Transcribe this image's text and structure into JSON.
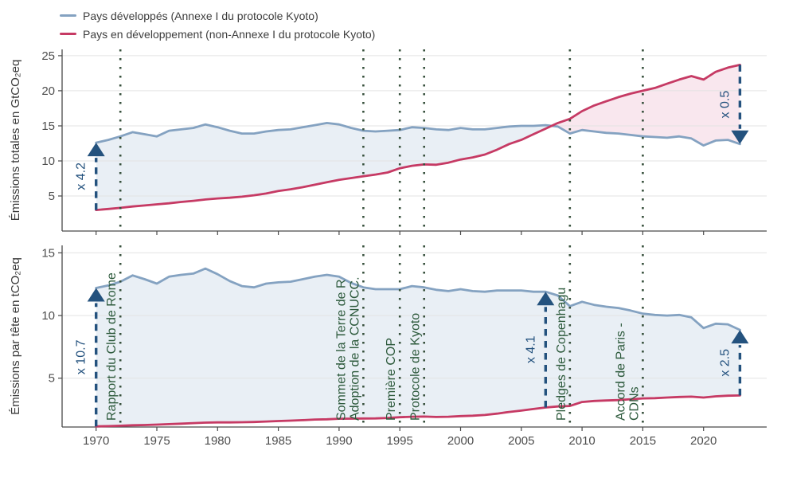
{
  "legend": {
    "items": [
      {
        "label": "Pays développés (Annexe I du protocole Kyoto)",
        "color": "#84a2c1"
      },
      {
        "label": "Pays en développement (non-Annexe I du protocole Kyoto)",
        "color": "#c63a64"
      }
    ]
  },
  "colors": {
    "developed_line": "#84a2c1",
    "developing_line": "#c63a64",
    "developed_fill": "#e9eff5",
    "developing_fill": "#f9e7ee",
    "annotation": "#24527e",
    "event_text": "#2d5a3c",
    "event_line": "#37503c",
    "grid": "#e3e3e3",
    "axis": "#4a4a4a",
    "tick_text": "#4d4d4d",
    "axis_title_text": "#3a3a3a"
  },
  "chart_data": {
    "type": "area",
    "title": "",
    "xlabel": "",
    "x": [
      1970,
      1971,
      1972,
      1973,
      1974,
      1975,
      1976,
      1977,
      1978,
      1979,
      1980,
      1981,
      1982,
      1983,
      1984,
      1985,
      1986,
      1987,
      1988,
      1989,
      1990,
      1991,
      1992,
      1993,
      1994,
      1995,
      1996,
      1997,
      1998,
      1999,
      2000,
      2001,
      2002,
      2003,
      2004,
      2005,
      2006,
      2007,
      2008,
      2009,
      2010,
      2011,
      2012,
      2013,
      2014,
      2015,
      2016,
      2017,
      2018,
      2019,
      2020,
      2021,
      2022,
      2023
    ],
    "xticks": [
      1970,
      1975,
      1980,
      1985,
      1990,
      1995,
      2000,
      2005,
      2010,
      2015,
      2020
    ],
    "xlim": [
      1967.2,
      2025.2
    ],
    "grid": "horizontal",
    "legend_position": "top-left",
    "panels": [
      {
        "ylabel": "Émissions totales en GtCO₂eq",
        "yticks": [
          5,
          10,
          15,
          20,
          25
        ],
        "ylim": [
          0,
          25.9
        ],
        "series": [
          {
            "id": "developed",
            "name": "Pays développés (Annexe I du protocole Kyoto)",
            "values": [
              12.6,
              13.0,
              13.5,
              14.1,
              13.8,
              13.5,
              14.3,
              14.5,
              14.7,
              15.2,
              14.8,
              14.3,
              13.9,
              13.9,
              14.2,
              14.4,
              14.5,
              14.8,
              15.1,
              15.4,
              15.2,
              14.7,
              14.3,
              14.2,
              14.3,
              14.4,
              14.8,
              14.7,
              14.5,
              14.4,
              14.7,
              14.5,
              14.5,
              14.7,
              14.9,
              15.0,
              15.0,
              15.1,
              14.9,
              13.9,
              14.4,
              14.2,
              14.0,
              13.9,
              13.7,
              13.5,
              13.4,
              13.3,
              13.5,
              13.2,
              12.2,
              12.9,
              13.0,
              12.4
            ]
          },
          {
            "id": "developing",
            "name": "Pays en développement (non-Annexe I du protocole Kyoto)",
            "values": [
              3.0,
              3.15,
              3.3,
              3.5,
              3.65,
              3.8,
              3.95,
              4.15,
              4.3,
              4.5,
              4.65,
              4.75,
              4.9,
              5.1,
              5.35,
              5.7,
              5.95,
              6.25,
              6.6,
              6.95,
              7.3,
              7.55,
              7.8,
              8.05,
              8.35,
              8.95,
              9.3,
              9.5,
              9.45,
              9.75,
              10.2,
              10.5,
              10.9,
              11.6,
              12.4,
              13.0,
              13.8,
              14.6,
              15.4,
              16.0,
              17.1,
              17.9,
              18.5,
              19.1,
              19.6,
              20.0,
              20.4,
              21.0,
              21.6,
              22.1,
              21.6,
              22.7,
              23.3,
              23.7
            ]
          }
        ]
      },
      {
        "ylabel": "Émissions par tête en tCO₂eq",
        "yticks": [
          5,
          10,
          15
        ],
        "ylim": [
          1.1,
          15.6
        ],
        "series": [
          {
            "id": "developed",
            "name": "Pays développés (Annexe I du protocole Kyoto)",
            "values": [
              12.2,
              12.4,
              12.7,
              13.2,
              12.9,
              12.55,
              13.1,
              13.25,
              13.35,
              13.75,
              13.3,
              12.75,
              12.35,
              12.25,
              12.55,
              12.65,
              12.7,
              12.9,
              13.1,
              13.25,
              13.1,
              12.6,
              12.25,
              12.1,
              12.1,
              12.1,
              12.35,
              12.25,
              12.05,
              11.95,
              12.1,
              11.95,
              11.9,
              12.0,
              12.0,
              12.0,
              11.9,
              11.9,
              11.6,
              10.75,
              11.1,
              10.85,
              10.7,
              10.6,
              10.4,
              10.15,
              10.05,
              10.0,
              10.05,
              9.85,
              9.0,
              9.35,
              9.3,
              8.85
            ]
          },
          {
            "id": "developing",
            "name": "Pays en développement (non-Annexe I du protocole Kyoto)",
            "values": [
              1.15,
              1.17,
              1.2,
              1.24,
              1.26,
              1.29,
              1.33,
              1.37,
              1.41,
              1.45,
              1.47,
              1.47,
              1.48,
              1.5,
              1.54,
              1.58,
              1.61,
              1.65,
              1.7,
              1.72,
              1.76,
              1.77,
              1.78,
              1.79,
              1.82,
              1.88,
              1.92,
              1.93,
              1.9,
              1.92,
              1.97,
              2.0,
              2.06,
              2.17,
              2.3,
              2.41,
              2.54,
              2.66,
              2.74,
              2.78,
              3.1,
              3.18,
              3.22,
              3.25,
              3.32,
              3.38,
              3.4,
              3.45,
              3.5,
              3.52,
              3.45,
              3.55,
              3.6,
              3.62
            ]
          }
        ]
      }
    ],
    "events": [
      {
        "year": 1972,
        "lines": [
          "Rapport du Club de Rome"
        ]
      },
      {
        "year": 1992,
        "lines": [
          "Sommet de la Terre de R",
          "Adoption de la CCNUCC."
        ]
      },
      {
        "year": 1995,
        "lines": [
          "Première COP"
        ]
      },
      {
        "year": 1997,
        "lines": [
          "Protocole de Kyoto"
        ]
      },
      {
        "year": 2009,
        "lines": [
          "Pledges de Copenhagu"
        ]
      },
      {
        "year": 2015,
        "lines": [
          "Accord de Paris -",
          "CDNs"
        ]
      }
    ],
    "annotations": [
      {
        "panel": 0,
        "year": 1970,
        "label": "x 4.2"
      },
      {
        "panel": 0,
        "year": 2023,
        "label": "x 0.5"
      },
      {
        "panel": 1,
        "year": 1970,
        "label": "x 10.7"
      },
      {
        "panel": 1,
        "year": 2007,
        "label": "x 4.1"
      },
      {
        "panel": 1,
        "year": 2023,
        "label": "x 2.5"
      }
    ]
  }
}
